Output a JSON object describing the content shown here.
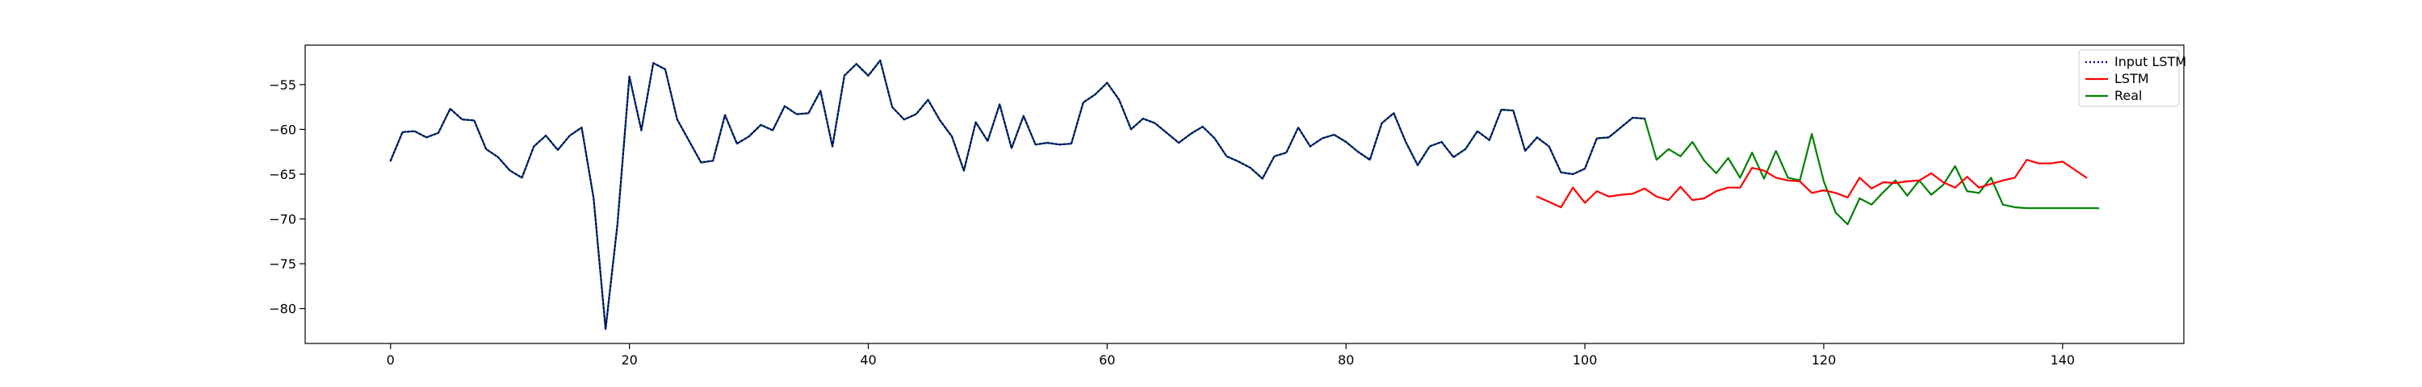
{
  "chart_data": {
    "type": "line",
    "title": "",
    "xlabel": "",
    "ylabel": "",
    "xlim": [
      -7.15,
      150.15
    ],
    "ylim": [
      -83.9,
      -50.6
    ],
    "xticks": [
      0,
      20,
      40,
      60,
      80,
      100,
      120,
      140
    ],
    "yticks": [
      -80,
      -75,
      -70,
      -65,
      -60,
      -55
    ],
    "xtick_labels": [
      "0",
      "20",
      "40",
      "60",
      "80",
      "100",
      "120",
      "140"
    ],
    "ytick_labels": [
      "−80",
      "−75",
      "−70",
      "−65",
      "−60",
      "−55"
    ],
    "grid": false,
    "legend_position": "top-right",
    "series": [
      {
        "name": "Input LSTM",
        "color": "#00008b",
        "style": "dotted",
        "x_start": 0,
        "values": [
          -63.5,
          -60.3,
          -60.2,
          -60.9,
          -60.4,
          -57.7,
          -58.9,
          -59.0,
          -62.2,
          -63.1,
          -64.6,
          -65.4,
          -61.9,
          -60.7,
          -62.3,
          -60.7,
          -59.8,
          -67.7,
          -82.3,
          -70.6,
          -54.1,
          -60.1,
          -52.6,
          -53.3,
          -58.9,
          -61.3,
          -63.7,
          -63.5,
          -58.4,
          -61.6,
          -60.8,
          -59.5,
          -60.1,
          -57.4,
          -58.3,
          -58.2,
          -55.7,
          -61.9,
          -54.0,
          -52.7,
          -54.0,
          -52.3,
          -57.5,
          -58.9,
          -58.3,
          -56.7,
          -59.0,
          -60.8,
          -64.6,
          -59.2,
          -61.3,
          -57.2,
          -62.1,
          -58.5,
          -61.7,
          -61.5,
          -61.7,
          -61.6,
          -57.0,
          -56.1,
          -54.8,
          -56.7,
          -60.0,
          -58.8,
          -59.3,
          -60.4,
          -61.5,
          -60.5,
          -59.7,
          -61.0,
          -63.0,
          -63.6,
          -64.3,
          -65.5,
          -63.0,
          -62.6,
          -59.8,
          -61.9,
          -61.0,
          -60.6,
          -61.4,
          -62.5,
          -63.4,
          -59.3,
          -58.2,
          -61.4,
          -64.0,
          -61.9,
          -61.4,
          -63.1,
          -62.2,
          -60.2,
          -61.2,
          -57.8,
          -57.9,
          -62.4,
          -60.9,
          -61.9,
          -64.8,
          -65.0,
          -64.4,
          -61.0,
          -60.9,
          -59.8,
          -58.7,
          -58.8
        ]
      },
      {
        "name": "LSTM",
        "color": "#ff0000",
        "style": "solid",
        "x_start": 96,
        "values": [
          -67.5,
          -68.1,
          -68.7,
          -66.5,
          -68.2,
          -66.9,
          -67.5,
          -67.3,
          -67.2,
          -66.6,
          -67.5,
          -67.9,
          -66.4,
          -67.9,
          -67.7,
          -66.9,
          -66.5,
          -66.5,
          -64.3,
          -64.6,
          -65.4,
          -65.7,
          -65.8,
          -67.1,
          -66.8,
          -67.1,
          -67.6,
          -65.4,
          -66.6,
          -65.9,
          -66.0,
          -65.8,
          -65.7,
          -64.9,
          -65.9,
          -66.5,
          -65.3,
          -66.5,
          -66.1,
          -65.7,
          -65.4,
          -63.4,
          -63.8,
          -63.8,
          -63.6,
          -64.5,
          -65.4
        ]
      },
      {
        "name": "Real",
        "color": "#008000",
        "style": "solid",
        "x_start": 0,
        "values": [
          -63.5,
          -60.3,
          -60.2,
          -60.9,
          -60.4,
          -57.7,
          -58.9,
          -59.0,
          -62.2,
          -63.1,
          -64.6,
          -65.4,
          -61.9,
          -60.7,
          -62.3,
          -60.7,
          -59.8,
          -67.7,
          -82.3,
          -70.6,
          -54.1,
          -60.1,
          -52.6,
          -53.3,
          -58.9,
          -61.3,
          -63.7,
          -63.5,
          -58.4,
          -61.6,
          -60.8,
          -59.5,
          -60.1,
          -57.4,
          -58.3,
          -58.2,
          -55.7,
          -61.9,
          -54.0,
          -52.7,
          -54.0,
          -52.3,
          -57.5,
          -58.9,
          -58.3,
          -56.7,
          -59.0,
          -60.8,
          -64.6,
          -59.2,
          -61.3,
          -57.2,
          -62.1,
          -58.5,
          -61.7,
          -61.5,
          -61.7,
          -61.6,
          -57.0,
          -56.1,
          -54.8,
          -56.7,
          -60.0,
          -58.8,
          -59.3,
          -60.4,
          -61.5,
          -60.5,
          -59.7,
          -61.0,
          -63.0,
          -63.6,
          -64.3,
          -65.5,
          -63.0,
          -62.6,
          -59.8,
          -61.9,
          -61.0,
          -60.6,
          -61.4,
          -62.5,
          -63.4,
          -59.3,
          -58.2,
          -61.4,
          -64.0,
          -61.9,
          -61.4,
          -63.1,
          -62.2,
          -60.2,
          -61.2,
          -57.8,
          -57.9,
          -62.4,
          -60.9,
          -61.9,
          -64.8,
          -65.0,
          -64.4,
          -61.0,
          -60.9,
          -59.8,
          -58.7,
          -58.8,
          -63.4,
          -62.2,
          -63.0,
          -61.4,
          -63.5,
          -64.9,
          -63.2,
          -65.4,
          -62.6,
          -65.5,
          -62.4,
          -65.4,
          -65.7,
          -60.5,
          -65.8,
          -69.3,
          -70.6,
          -67.7,
          -68.4,
          -67.0,
          -65.7,
          -67.4,
          -65.7,
          -67.3,
          -66.2,
          -64.1,
          -66.9,
          -67.1,
          -65.4,
          -68.4,
          -68.7,
          -68.8,
          -68.8,
          -68.8,
          -68.8,
          -68.8,
          -68.8,
          -68.8
        ]
      }
    ]
  }
}
